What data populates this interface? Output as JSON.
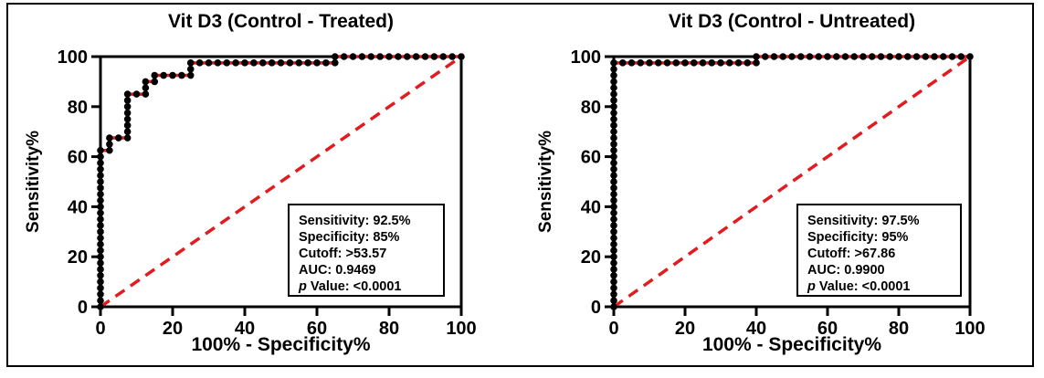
{
  "figure": {
    "background": "#ffffff",
    "outer_border_color": "#000000",
    "axis_color": "#000000",
    "accent_red": "#e01c21"
  },
  "chart_data": [
    {
      "type": "line",
      "subtype": "roc-step-curve",
      "title": "Vit D3 (Control - Treated)",
      "xlabel": "100% - Specificity%",
      "ylabel": "Sensitivity%",
      "xlim": [
        0,
        100
      ],
      "ylim": [
        0,
        100
      ],
      "xticks": [
        0,
        20,
        40,
        60,
        80,
        100
      ],
      "yticks": [
        0,
        20,
        40,
        60,
        80,
        100
      ],
      "grid": false,
      "legend": "none",
      "series": [
        {
          "name": "ROC curve",
          "color": "#e01c21",
          "marker": "circle",
          "marker_color": "#000000",
          "marker_interval": 2.5,
          "step_vertices": [
            [
              0,
              0
            ],
            [
              0,
              62.5
            ],
            [
              2.5,
              62.5
            ],
            [
              2.5,
              67.5
            ],
            [
              7.5,
              67.5
            ],
            [
              7.5,
              85
            ],
            [
              12.5,
              85
            ],
            [
              12.5,
              90
            ],
            [
              15,
              90
            ],
            [
              15,
              92.5
            ],
            [
              25,
              92.5
            ],
            [
              25,
              97.5
            ],
            [
              65,
              97.5
            ],
            [
              65,
              100
            ],
            [
              100,
              100
            ]
          ]
        },
        {
          "name": "Identity line",
          "color": "#e01c21",
          "style": "dashed",
          "points": [
            [
              0,
              0
            ],
            [
              100,
              100
            ]
          ]
        }
      ],
      "stats_box": {
        "lines": [
          {
            "italic_prefix": "",
            "text": "Sensitivity: 92.5%"
          },
          {
            "italic_prefix": "",
            "text": "Specificity: 85%"
          },
          {
            "italic_prefix": "",
            "text": "Cutoff: >53.57"
          },
          {
            "italic_prefix": "",
            "text": "AUC: 0.9469"
          },
          {
            "italic_prefix": "p",
            "text": " Value: <0.0001"
          }
        ]
      }
    },
    {
      "type": "line",
      "subtype": "roc-step-curve",
      "title": "Vit D3 (Control - Untreated)",
      "xlabel": "100% - Specificity%",
      "ylabel": "Sensitivity%",
      "xlim": [
        0,
        100
      ],
      "ylim": [
        0,
        100
      ],
      "xticks": [
        0,
        20,
        40,
        60,
        80,
        100
      ],
      "yticks": [
        0,
        20,
        40,
        60,
        80,
        100
      ],
      "grid": false,
      "legend": "none",
      "series": [
        {
          "name": "ROC curve",
          "color": "#e01c21",
          "marker": "circle",
          "marker_color": "#000000",
          "marker_interval": 2.5,
          "step_vertices": [
            [
              0,
              0
            ],
            [
              0,
              97.5
            ],
            [
              40,
              97.5
            ],
            [
              40,
              100
            ],
            [
              100,
              100
            ]
          ]
        },
        {
          "name": "Identity line",
          "color": "#e01c21",
          "style": "dashed",
          "points": [
            [
              0,
              0
            ],
            [
              100,
              100
            ]
          ]
        }
      ],
      "stats_box": {
        "lines": [
          {
            "italic_prefix": "",
            "text": "Sensitivity: 97.5%"
          },
          {
            "italic_prefix": "",
            "text": "Specificity: 95%"
          },
          {
            "italic_prefix": "",
            "text": "Cutoff: >67.86"
          },
          {
            "italic_prefix": "",
            "text": "AUC: 0.9900"
          },
          {
            "italic_prefix": "p",
            "text": " Value: <0.0001"
          }
        ]
      }
    }
  ]
}
